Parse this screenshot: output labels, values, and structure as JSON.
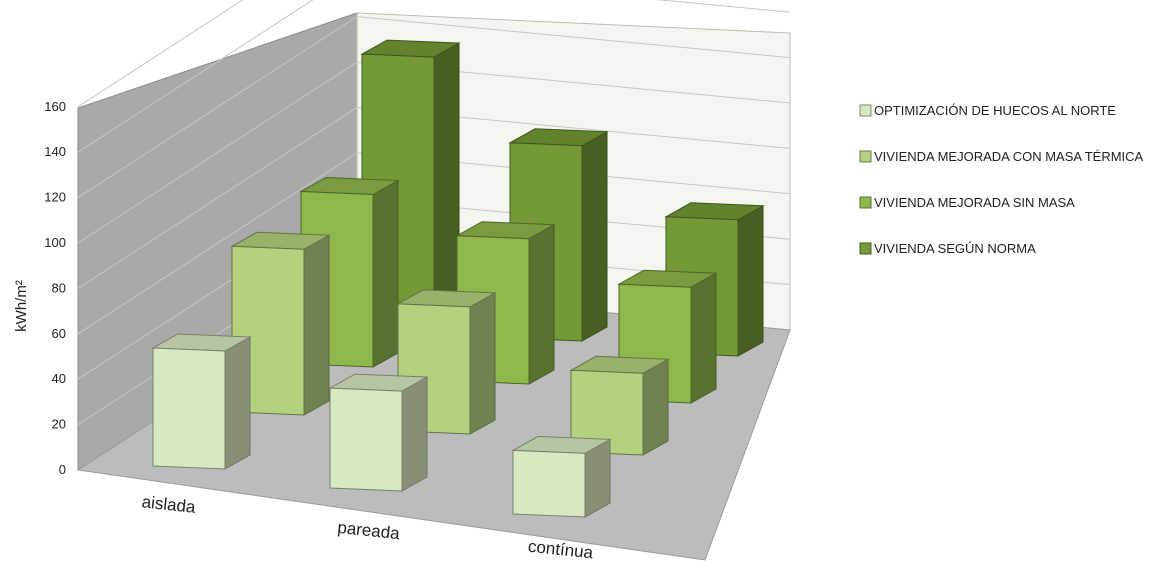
{
  "chart_data": {
    "type": "bar",
    "projection": "3d-clustered-depth",
    "categories": [
      "aislada",
      "pareada",
      "contínua"
    ],
    "series": [
      {
        "name": "OPTIMIZACIÓN DE HUECOS AL NORTE",
        "color": "#d8e8c0",
        "values": [
          52,
          44,
          28
        ]
      },
      {
        "name": "VIVIENDA MEJORADA CON MASA TÉRMICA",
        "color": "#b3d17f",
        "values": [
          73,
          56,
          36
        ]
      },
      {
        "name": "VIVIENDA MEJORADA SIN MASA",
        "color": "#8eb84b",
        "values": [
          76,
          64,
          51
        ]
      },
      {
        "name": "VIVIENDA SEGÚN NORMA",
        "color": "#739a36",
        "values": [
          118,
          86,
          60
        ]
      }
    ],
    "ylabel": "kWh/m²",
    "yticks": [
      0,
      20,
      40,
      60,
      80,
      100,
      120,
      140,
      160
    ],
    "ylim": [
      0,
      160
    ],
    "grid": true,
    "legend": "right"
  }
}
